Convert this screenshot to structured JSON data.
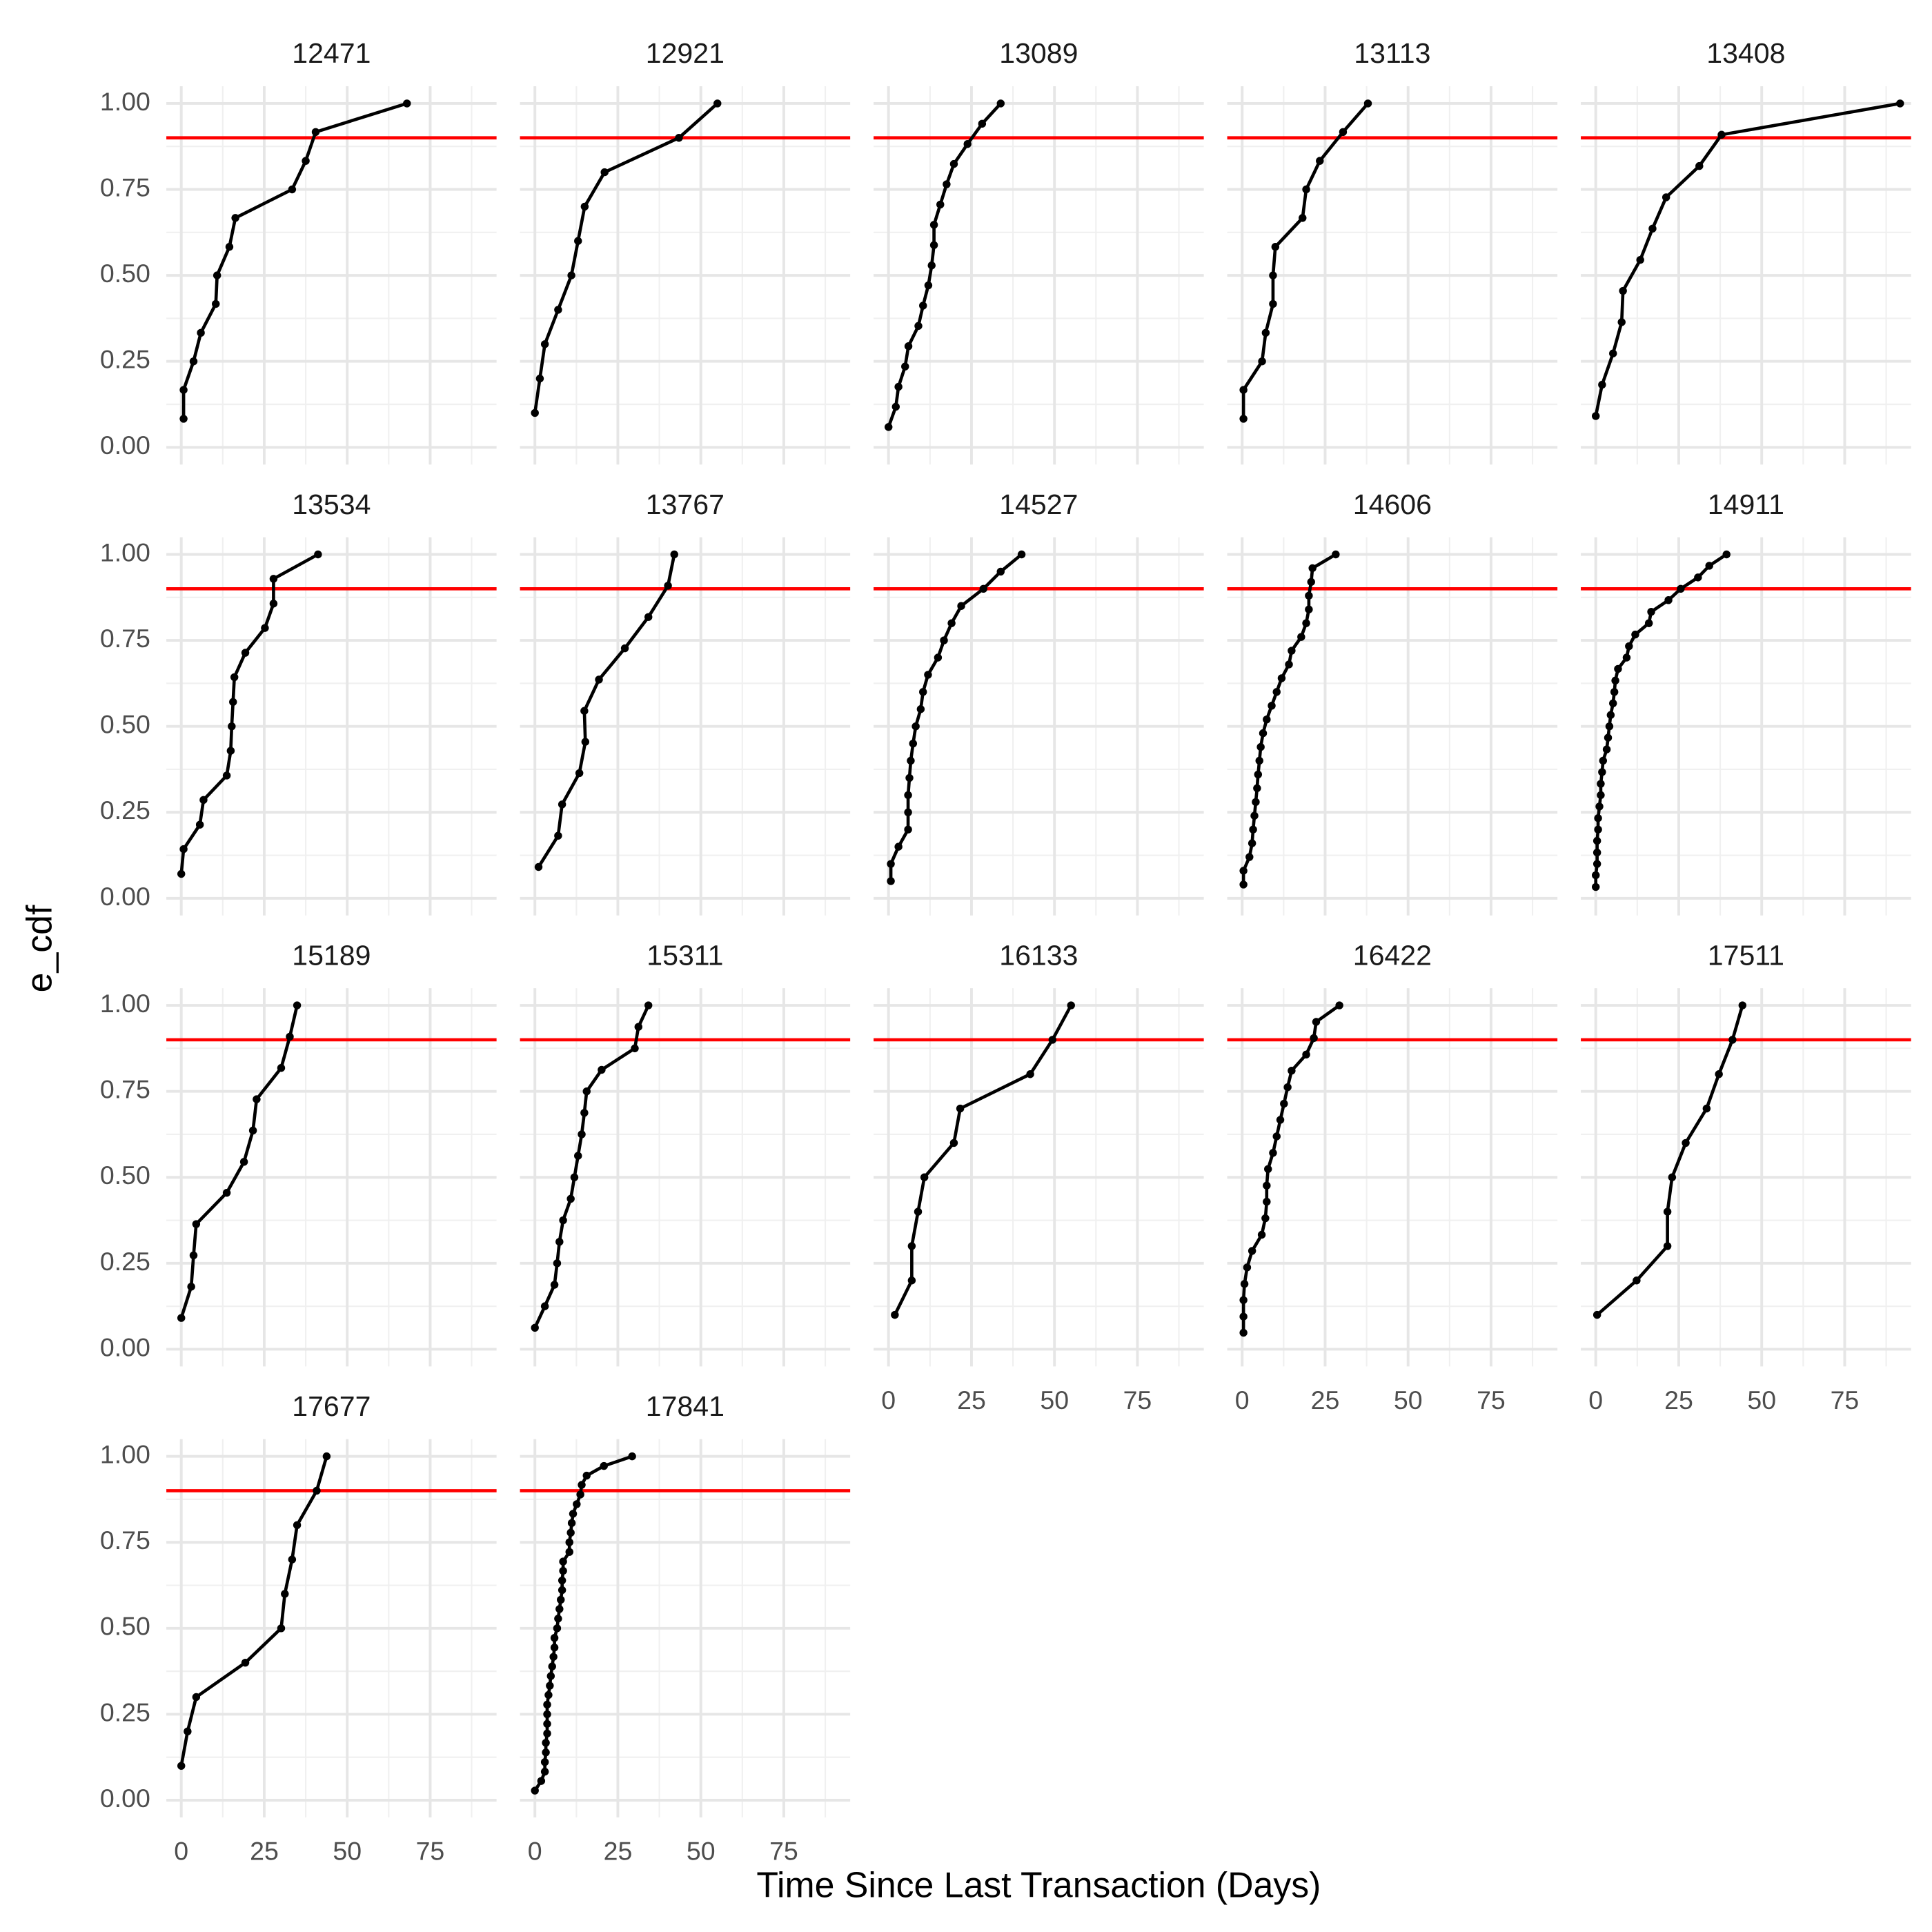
{
  "chart_data": {
    "type": "line",
    "xlabel": "Time Since Last Transaction (Days)",
    "ylabel": "e_cdf",
    "xlim": [
      -4.5,
      95
    ],
    "ylim": [
      -0.05,
      1.05
    ],
    "xticks": [
      0,
      25,
      50,
      75
    ],
    "yticks": [
      {
        "value": 0,
        "label": "0.00"
      },
      {
        "value": 0.25,
        "label": "0.25"
      },
      {
        "value": 0.5,
        "label": "0.50"
      },
      {
        "value": 0.75,
        "label": "0.75"
      },
      {
        "value": 1,
        "label": "1.00"
      }
    ],
    "grid": true,
    "color": "#000000",
    "reference_line": {
      "value": 0.9,
      "color": "#ff0000"
    },
    "panels": [
      {
        "title": "12471",
        "x": [
          0.7,
          0.7,
          3.7,
          5.9,
          10.4,
          10.8,
          14.5,
          16.3,
          33.4,
          37.5,
          40.5,
          68
        ],
        "values": [
          0.083,
          0.167,
          0.25,
          0.333,
          0.417,
          0.5,
          0.583,
          0.667,
          0.75,
          0.833,
          0.917,
          1
        ]
      },
      {
        "title": "12921",
        "x": [
          0,
          1.5,
          3,
          7,
          11,
          13,
          15,
          21,
          43.4,
          55
        ],
        "values": [
          0.1,
          0.2,
          0.3,
          0.4,
          0.5,
          0.6,
          0.7,
          0.8,
          0.9,
          1
        ]
      },
      {
        "title": "13089",
        "x": [
          0,
          2.2,
          3,
          5,
          6,
          9,
          10.4,
          12,
          13,
          13.7,
          13.7,
          15.6,
          17.5,
          19.7,
          23.8,
          28.2,
          33.8
        ],
        "values": [
          0.059,
          0.118,
          0.176,
          0.235,
          0.294,
          0.353,
          0.412,
          0.471,
          0.529,
          0.588,
          0.647,
          0.706,
          0.765,
          0.824,
          0.882,
          0.941,
          1
        ]
      },
      {
        "title": "13113",
        "x": [
          0.4,
          0.4,
          6,
          7.1,
          9.3,
          9.3,
          10,
          18.2,
          19.3,
          23.4,
          30.4,
          37.9
        ],
        "values": [
          0.083,
          0.167,
          0.25,
          0.333,
          0.417,
          0.5,
          0.583,
          0.667,
          0.75,
          0.833,
          0.917,
          1
        ]
      },
      {
        "title": "13408",
        "x": [
          0,
          1.9,
          5.2,
          7.8,
          8.2,
          13.4,
          17.1,
          21.2,
          31.2,
          37.9,
          91.7
        ],
        "values": [
          0.091,
          0.182,
          0.273,
          0.364,
          0.455,
          0.545,
          0.636,
          0.727,
          0.818,
          0.909,
          1
        ]
      },
      {
        "title": "13534",
        "x": [
          0,
          0.7,
          5.6,
          6.7,
          13.7,
          14.9,
          15.2,
          15.6,
          16,
          19.3,
          25.2,
          27.8,
          27.8,
          41.2
        ],
        "values": [
          0.071,
          0.143,
          0.214,
          0.286,
          0.357,
          0.429,
          0.5,
          0.571,
          0.643,
          0.714,
          0.786,
          0.857,
          0.929,
          1
        ]
      },
      {
        "title": "13767",
        "x": [
          1.1,
          7,
          8.2,
          13.4,
          15.2,
          14.9,
          19.3,
          27.1,
          34.2,
          40.1,
          42
        ],
        "values": [
          0.091,
          0.182,
          0.273,
          0.364,
          0.455,
          0.545,
          0.636,
          0.727,
          0.818,
          0.909,
          1
        ]
      },
      {
        "title": "14527",
        "x": [
          0.7,
          0.7,
          3,
          5.9,
          5.9,
          5.9,
          6.3,
          6.7,
          7.4,
          8.2,
          9.7,
          10.4,
          11.9,
          14.9,
          16.7,
          19,
          21.9,
          28.6,
          33.8,
          40.1
        ],
        "values": [
          0.05,
          0.1,
          0.15,
          0.2,
          0.25,
          0.3,
          0.35,
          0.4,
          0.45,
          0.5,
          0.55,
          0.6,
          0.65,
          0.7,
          0.75,
          0.8,
          0.85,
          0.9,
          0.95,
          1
        ]
      },
      {
        "title": "14606",
        "x": [
          0.4,
          0.4,
          2.2,
          3,
          3.3,
          3.7,
          4.1,
          4.5,
          4.8,
          5.2,
          5.6,
          6.3,
          7.4,
          8.9,
          10.4,
          11.9,
          14.1,
          14.9,
          17.8,
          19.3,
          20.1,
          20.1,
          20.8,
          21.2,
          28.2
        ],
        "values": [
          0.04,
          0.08,
          0.12,
          0.16,
          0.2,
          0.24,
          0.28,
          0.32,
          0.36,
          0.4,
          0.44,
          0.48,
          0.52,
          0.56,
          0.6,
          0.64,
          0.68,
          0.72,
          0.76,
          0.8,
          0.84,
          0.88,
          0.92,
          0.96,
          1
        ]
      },
      {
        "title": "14911",
        "x": [
          0,
          0,
          0.4,
          0.4,
          0.4,
          0.7,
          0.7,
          1.1,
          1.5,
          1.5,
          1.9,
          2.2,
          3.3,
          3.7,
          4.1,
          4.5,
          5.2,
          5.6,
          5.9,
          6.7,
          9.3,
          10,
          11.9,
          16,
          16.7,
          21.9,
          25.6,
          30.8,
          34.2,
          39.4
        ],
        "values": [
          0.033,
          0.067,
          0.1,
          0.133,
          0.167,
          0.2,
          0.233,
          0.267,
          0.3,
          0.333,
          0.367,
          0.4,
          0.433,
          0.467,
          0.5,
          0.533,
          0.567,
          0.6,
          0.633,
          0.667,
          0.7,
          0.733,
          0.767,
          0.8,
          0.833,
          0.867,
          0.9,
          0.933,
          0.967,
          1
        ]
      },
      {
        "title": "15189",
        "x": [
          0,
          3,
          3.7,
          4.5,
          13.7,
          18.9,
          21.6,
          22.7,
          30.1,
          32.7,
          34.9
        ],
        "values": [
          0.091,
          0.182,
          0.273,
          0.364,
          0.455,
          0.545,
          0.636,
          0.727,
          0.818,
          0.909,
          1
        ]
      },
      {
        "title": "15311",
        "x": [
          0,
          3,
          5.9,
          6.7,
          7.4,
          8.5,
          10.8,
          11.9,
          13,
          14.1,
          14.9,
          15.6,
          20.1,
          30.1,
          31.2,
          34.2
        ],
        "values": [
          0.0625,
          0.125,
          0.1875,
          0.25,
          0.3125,
          0.375,
          0.4375,
          0.5,
          0.5625,
          0.625,
          0.6875,
          0.75,
          0.8125,
          0.875,
          0.9375,
          1
        ]
      },
      {
        "title": "16133",
        "x": [
          1.9,
          7,
          7,
          8.9,
          10.8,
          19.7,
          21.6,
          42.7,
          49.4,
          55
        ],
        "values": [
          0.1,
          0.2,
          0.3,
          0.4,
          0.5,
          0.6,
          0.7,
          0.8,
          0.9,
          1
        ]
      },
      {
        "title": "16422",
        "x": [
          0.4,
          0.4,
          0.4,
          0.7,
          1.5,
          3,
          5.9,
          7,
          7.4,
          7.4,
          7.8,
          9.3,
          10.4,
          11.5,
          12.6,
          13.7,
          14.9,
          19.3,
          21.6,
          22.3,
          29.3
        ],
        "values": [
          0.048,
          0.095,
          0.143,
          0.19,
          0.238,
          0.286,
          0.333,
          0.381,
          0.429,
          0.476,
          0.524,
          0.571,
          0.619,
          0.667,
          0.714,
          0.762,
          0.81,
          0.857,
          0.905,
          0.952,
          1
        ]
      },
      {
        "title": "17511",
        "x": [
          0.4,
          12.3,
          21.6,
          21.6,
          23,
          27.1,
          33.4,
          37.1,
          41.2,
          44.2
        ],
        "values": [
          0.1,
          0.2,
          0.3,
          0.4,
          0.5,
          0.6,
          0.7,
          0.8,
          0.9,
          1
        ]
      },
      {
        "title": "17677",
        "x": [
          0,
          1.9,
          4.5,
          19.3,
          30.1,
          31.2,
          33.4,
          34.9,
          40.8,
          43.8
        ],
        "values": [
          0.1,
          0.2,
          0.3,
          0.4,
          0.5,
          0.6,
          0.7,
          0.8,
          0.9,
          1
        ]
      },
      {
        "title": "17841",
        "x": [
          0,
          1.9,
          3,
          3,
          3.3,
          3.3,
          3.7,
          3.7,
          3.7,
          3.7,
          4.1,
          4.5,
          4.8,
          5.2,
          5.6,
          5.9,
          5.9,
          6.7,
          7,
          7.4,
          7.8,
          8.2,
          8.2,
          8.5,
          8.5,
          10.4,
          10.4,
          10.8,
          11.1,
          11.5,
          12.6,
          13.7,
          14.1,
          15.6,
          20.8,
          29.3
        ],
        "values": [
          0.028,
          0.056,
          0.083,
          0.111,
          0.139,
          0.167,
          0.194,
          0.222,
          0.25,
          0.278,
          0.306,
          0.333,
          0.361,
          0.389,
          0.417,
          0.444,
          0.472,
          0.5,
          0.528,
          0.556,
          0.583,
          0.611,
          0.639,
          0.667,
          0.694,
          0.722,
          0.75,
          0.778,
          0.806,
          0.833,
          0.861,
          0.889,
          0.917,
          0.944,
          0.972,
          1
        ]
      }
    ]
  }
}
